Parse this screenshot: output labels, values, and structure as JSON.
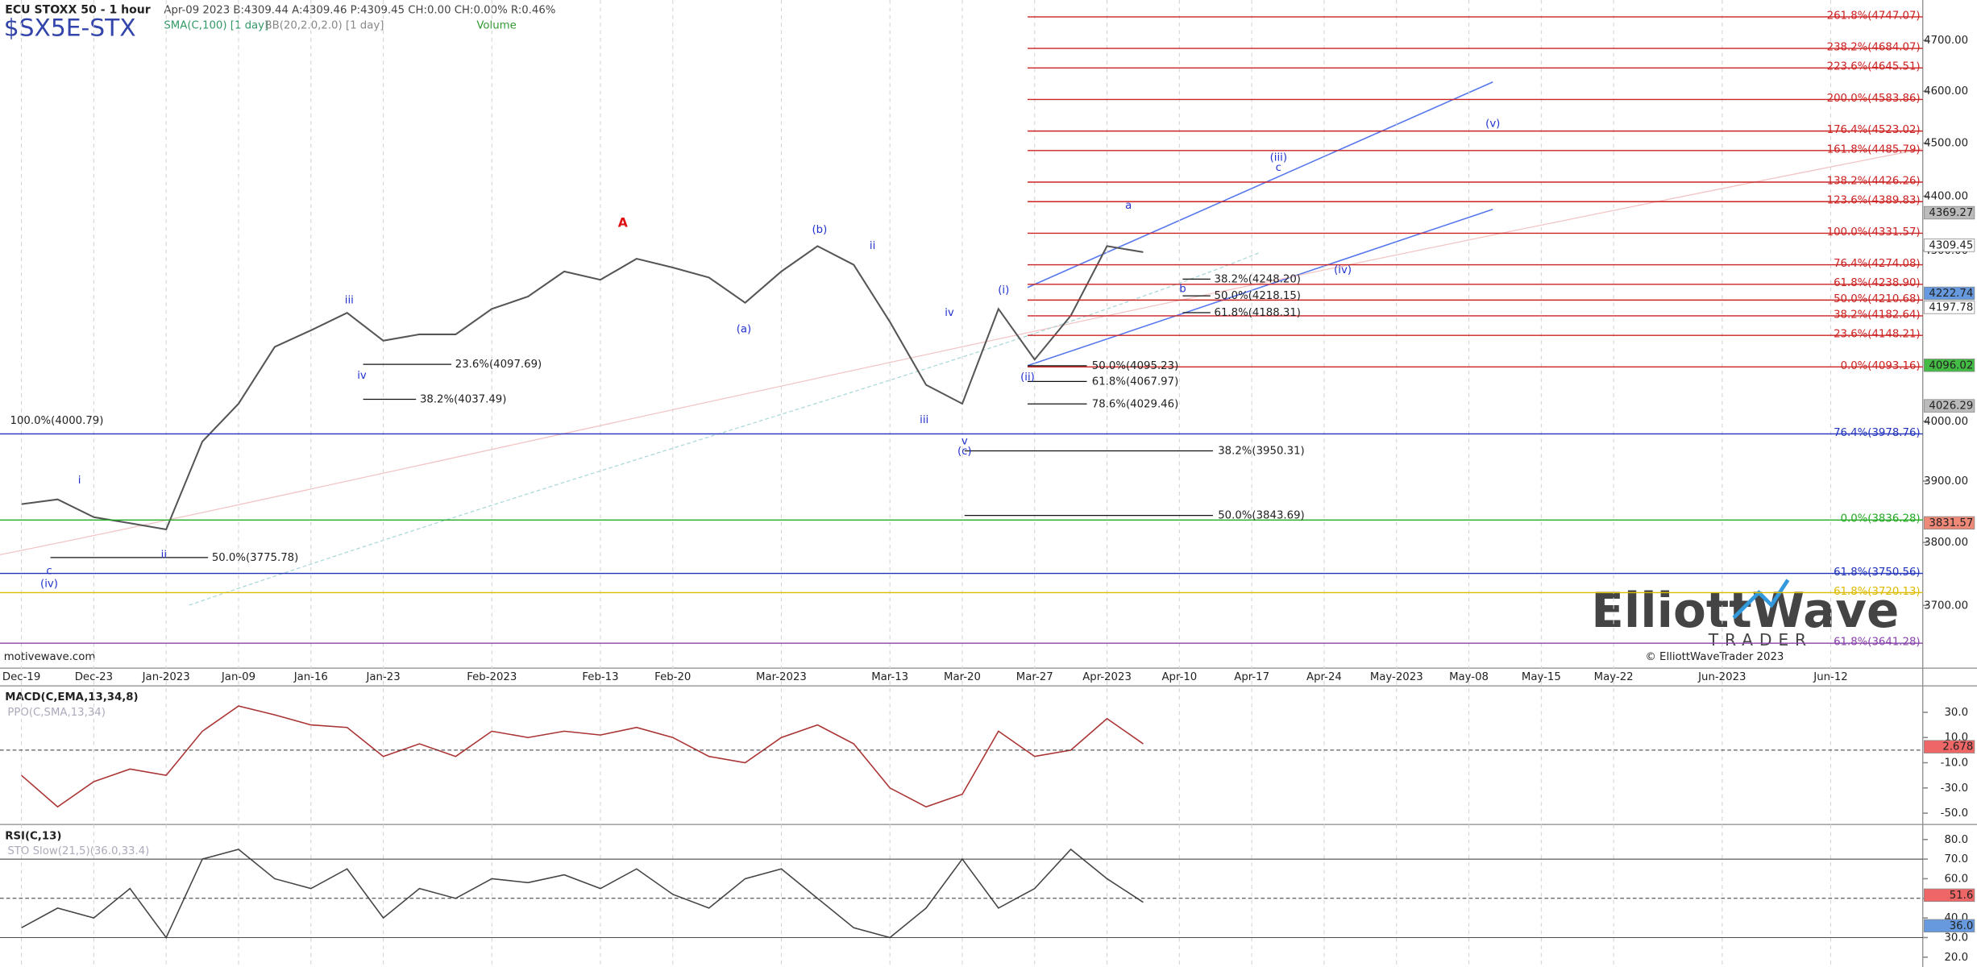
{
  "chart_data": [
    {
      "type": "line",
      "title": "ECU STOXX 50 - 1 hour",
      "subtitle": "Apr-09 2023  B:4309.44  A:4309.46  P:4309.45  CH:0.00  CH:0.00%  R:0.46%",
      "symbol": "$SX5E-STX",
      "indicators": [
        "SMA(C,100) [1 day]",
        "BB(20,2.0,2.0) [1 day]",
        "Volume"
      ],
      "categories": [
        "Dec-19",
        null,
        "Dec-23",
        null,
        "Jan-2023",
        null,
        "Jan-09",
        null,
        "Jan-16",
        null,
        "Jan-23",
        null,
        null,
        "Feb-2023",
        null,
        null,
        "Feb-13",
        null,
        "Feb-20",
        null,
        null,
        "Mar-2023",
        null,
        null,
        "Mar-13",
        null,
        "Mar-20",
        null,
        "Mar-27",
        null,
        "Apr-2023",
        null,
        "Apr-10",
        null,
        "Apr-17",
        null,
        "Apr-24",
        null,
        "May-2023",
        null,
        "May-08",
        null,
        "May-15",
        null,
        "May-22",
        null,
        null,
        "Jun-2023",
        null,
        null,
        "Jun-12",
        null,
        null
      ],
      "values": [
        3862,
        3870,
        3841,
        3831,
        3821,
        3966,
        4030,
        4128,
        4157,
        4188,
        4139,
        4150,
        4150,
        4195,
        4217,
        4262,
        4247,
        4285,
        4269,
        4251,
        4206,
        4262,
        4308,
        4274,
        4172,
        4062,
        4030,
        4195,
        4106,
        4183,
        4308,
        4297,
        null,
        null,
        null,
        null,
        null,
        null,
        null,
        null,
        null,
        null,
        null,
        null,
        null,
        null,
        null,
        null,
        null,
        null,
        null,
        null,
        null
      ],
      "color": "#555555",
      "log_scale": true,
      "grid": true,
      "ylim": [
        3603,
        4781
      ],
      "yticks": [
        {
          "value": 3700,
          "label": "3700.00"
        },
        {
          "value": 3800,
          "label": "3800.00"
        },
        {
          "value": 3900,
          "label": "3900.00"
        },
        {
          "value": 4000,
          "label": "4000.00"
        },
        {
          "value": 4300,
          "label": "4300.00"
        },
        {
          "value": 4400,
          "label": "4400.00"
        },
        {
          "value": 4500,
          "label": "4500.00"
        },
        {
          "value": 4600,
          "label": "4600.00"
        },
        {
          "value": 4700,
          "label": "4700.00"
        }
      ],
      "fib_levels": [
        {
          "label": "261.8%(4747.07)",
          "value": 4747.07,
          "color": "#cc2222"
        },
        {
          "label": "238.2%(4684.07)",
          "value": 4684.07,
          "color": "#cc2222"
        },
        {
          "label": "223.6%(4645.51)",
          "value": 4645.51,
          "color": "#cc2222"
        },
        {
          "label": "200.0%(4583.86)",
          "value": 4583.86,
          "color": "#cc2222"
        },
        {
          "label": "176.4%(4523.02)",
          "value": 4523.02,
          "color": "#cc2222"
        },
        {
          "label": "161.8%(4485.79)",
          "value": 4485.79,
          "color": "#cc2222"
        },
        {
          "label": "138.2%(4426.26)",
          "value": 4426.26,
          "color": "#cc2222"
        },
        {
          "label": "123.6%(4389.83)",
          "value": 4389.83,
          "color": "#cc2222"
        },
        {
          "label": "100.0%(4331.57)",
          "value": 4331.57,
          "color": "#cc2222"
        },
        {
          "label": "76.4%(4274.08)",
          "value": 4274.08,
          "color": "#cc2222"
        },
        {
          "label": "61.8%(4238.90)",
          "value": 4238.9,
          "color": "#cc2222"
        },
        {
          "label": "50.0%(4210.68)",
          "value": 4210.68,
          "color": "#cc2222"
        },
        {
          "label": "38.2%(4182.64)",
          "value": 4182.64,
          "color": "#cc2222"
        },
        {
          "label": "23.6%(4148.21)",
          "value": 4148.21,
          "color": "#cc2222"
        },
        {
          "label": "0.0%(4093.16)",
          "value": 4093.16,
          "color": "#cc2222"
        },
        {
          "label": "76.4%(3978.76)",
          "value": 3978.76,
          "color": "#2233bb"
        },
        {
          "label": "0.0%(3836.28)",
          "value": 3836.28,
          "color": "#22aa22"
        },
        {
          "label": "61.8%(3750.56)",
          "value": 3750.56,
          "color": "#2233bb"
        },
        {
          "label": "61.8%(3720.13)",
          "value": 3720.13,
          "color": "#ddbb00"
        },
        {
          "label": "61.8%(3641.28)",
          "value": 3641.28,
          "color": "#8844aa"
        }
      ],
      "annotations": [
        {
          "label": "100.0%(4000.79)",
          "value": 4000.79
        },
        {
          "label": "50.0%(3775.78)",
          "value": 3775.78
        },
        {
          "label": "23.6%(4097.69)",
          "value": 4097.69
        },
        {
          "label": "38.2%(4037.49)",
          "value": 4037.49
        },
        {
          "label": "38.2%(4248.20)",
          "value": 4248.2
        },
        {
          "label": "50.0%(4218.15)",
          "value": 4218.15
        },
        {
          "label": "61.8%(4188.31)",
          "value": 4188.31
        },
        {
          "label": "50.0%(4095.23)",
          "value": 4095.23
        },
        {
          "label": "61.8%(4067.97)",
          "value": 4067.97
        },
        {
          "label": "78.6%(4029.46)",
          "value": 4029.46
        },
        {
          "label": "38.2%(3950.31)",
          "value": 3950.31
        },
        {
          "label": "50.0%(3843.69)",
          "value": 3843.69
        }
      ],
      "axis_tags": [
        {
          "label": "4369.27",
          "value": 4369.27,
          "color": "#bbbbbb"
        },
        {
          "label": "4309.45",
          "value": 4309.45,
          "color": "#ffffff"
        },
        {
          "label": "4222.74",
          "value": 4222.74,
          "color": "#6699dd"
        },
        {
          "label": "4197.78",
          "value": 4197.78,
          "color": "#ffffff"
        },
        {
          "label": "4096.02",
          "value": 4096.02,
          "color": "#44bb44"
        },
        {
          "label": "4026.29",
          "value": 4026.29,
          "color": "#bbbbbb"
        },
        {
          "label": "3831.57",
          "value": 3831.57,
          "color": "#ee8877"
        }
      ],
      "wave_labels": [
        "A",
        "iii",
        "iv",
        "i",
        "ii",
        "c",
        "(iv)",
        "(a)",
        "(b)",
        "ii",
        "iv",
        "iii",
        "v",
        "(c)",
        "(i)",
        "(ii)",
        "(iii)",
        "c",
        "(iv)",
        "(v)",
        "b",
        "a"
      ],
      "source": "motivewave.com",
      "logo": {
        "name": "ElliottWave",
        "tagline": "TRADER",
        "copyright": "© ElliottWaveTrader 2023"
      }
    },
    {
      "type": "line",
      "title": "MACD(C,EMA,13,34,8)",
      "subtitle": "PPO(C,SMA,13,34)",
      "color": "#aa3333",
      "values": [
        -20,
        -45,
        -25,
        -15,
        -20,
        15,
        35,
        28,
        20,
        18,
        -5,
        5,
        -5,
        15,
        10,
        15,
        12,
        18,
        10,
        -5,
        -10,
        10,
        20,
        5,
        -30,
        -45,
        -35,
        15,
        -5,
        0,
        25,
        5,
        null,
        null,
        null,
        null,
        null,
        null,
        null,
        null,
        null,
        null,
        null,
        null,
        null,
        null,
        null,
        null,
        null,
        null,
        null,
        null,
        null
      ],
      "ylim": [
        -57,
        50
      ],
      "yticks": [
        {
          "value": 30,
          "label": "30.0"
        },
        {
          "value": 10,
          "label": "10.0"
        },
        {
          "value": -10,
          "label": "-10.0"
        },
        {
          "value": -30,
          "label": "-30.0"
        },
        {
          "value": -50,
          "label": "-50.0"
        }
      ],
      "axis_tags": [
        {
          "label": "2.678",
          "value": 2.678,
          "color": "#ee6666"
        }
      ]
    },
    {
      "type": "line",
      "title": "RSI(C,13)",
      "subtitle": "STO Slow(21,5)(36.0,33.4)",
      "color": "#444444",
      "values": [
        35,
        45,
        40,
        55,
        30,
        70,
        75,
        60,
        55,
        65,
        40,
        55,
        50,
        60,
        58,
        62,
        55,
        65,
        52,
        45,
        60,
        65,
        50,
        35,
        30,
        45,
        70,
        45,
        55,
        75,
        60,
        48,
        null,
        null,
        null,
        null,
        null,
        null,
        null,
        null,
        null,
        null,
        null,
        null,
        null,
        null,
        null,
        null,
        null,
        null,
        null,
        null,
        null
      ],
      "ylim": [
        15,
        87
      ],
      "yticks": [
        {
          "value": 80,
          "label": "80.0"
        },
        {
          "value": 70,
          "label": "70.0"
        },
        {
          "value": 60,
          "label": "60.0"
        },
        {
          "value": 50,
          "label": "50.0"
        },
        {
          "value": 40,
          "label": "40.0"
        },
        {
          "value": 30,
          "label": "30.0"
        },
        {
          "value": 20,
          "label": "20.0"
        }
      ],
      "axis_tags": [
        {
          "label": "51.6",
          "value": 51.6,
          "color": "#ee6666"
        },
        {
          "label": "36.0",
          "value": 36,
          "color": "#6699dd"
        }
      ]
    }
  ]
}
